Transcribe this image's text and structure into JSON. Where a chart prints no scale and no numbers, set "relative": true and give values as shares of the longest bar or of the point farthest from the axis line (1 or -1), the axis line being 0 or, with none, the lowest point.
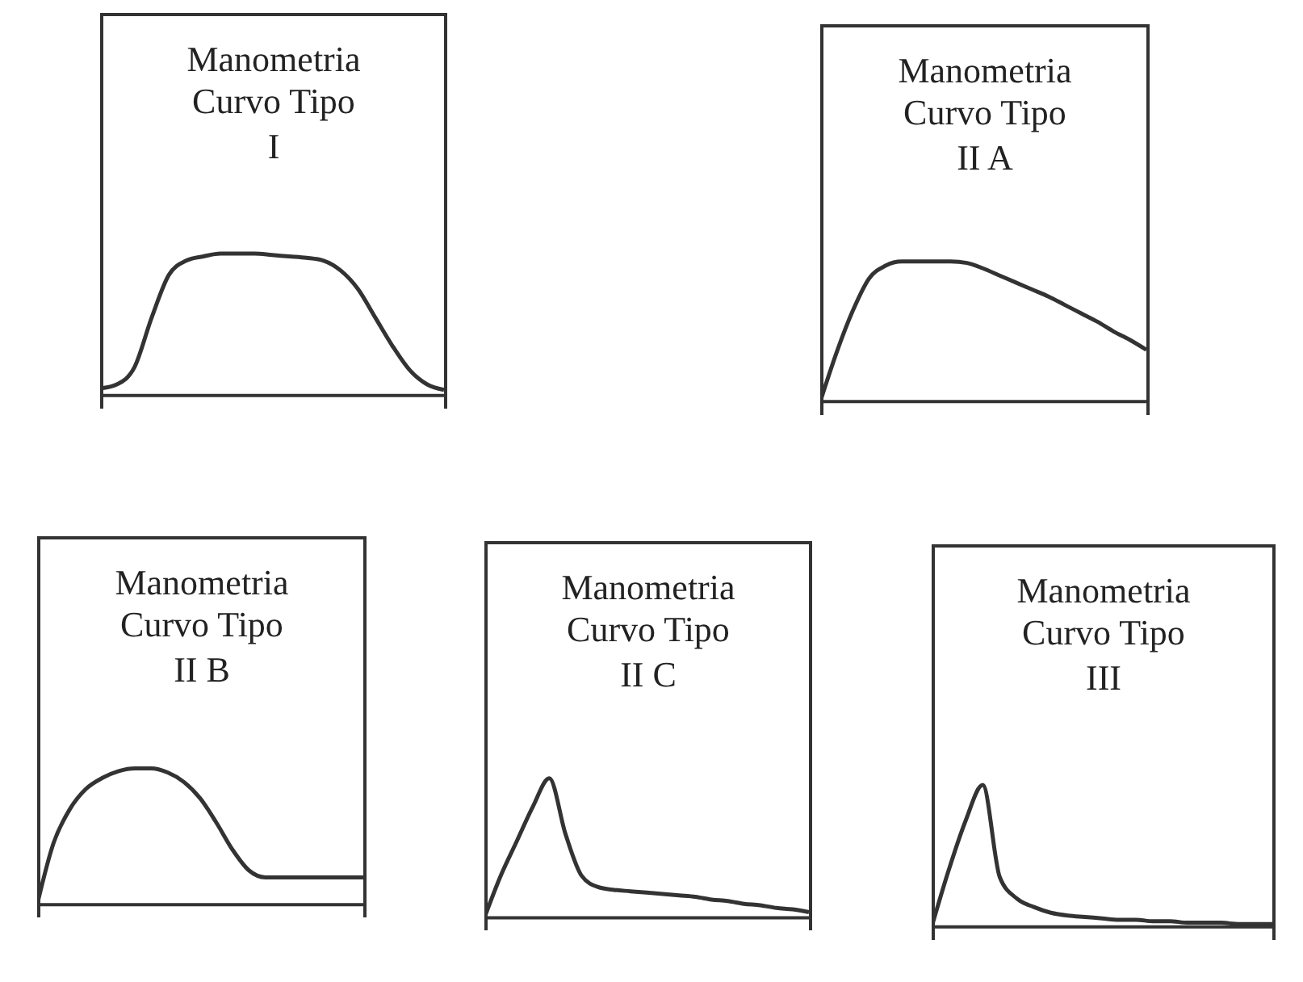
{
  "chart_data": [
    {
      "type": "line",
      "title": "Manometria Curvo Tipo",
      "subtitle": "I",
      "relative": true,
      "tick_labels": false,
      "color": "#333333",
      "categories": [
        null,
        null,
        null,
        null,
        null,
        null,
        null,
        null,
        null,
        null,
        null,
        null,
        null,
        null,
        null,
        null,
        null,
        null,
        null,
        null,
        null
      ],
      "values": [
        0.05,
        0.08,
        0.2,
        0.55,
        0.85,
        0.95,
        0.98,
        1,
        1,
        1,
        0.99,
        0.98,
        0.97,
        0.95,
        0.88,
        0.75,
        0.55,
        0.35,
        0.18,
        0.08,
        0.04
      ]
    },
    {
      "type": "line",
      "title": "Manometria Curvo Tipo",
      "subtitle": "II A",
      "relative": true,
      "tick_labels": false,
      "color": "#333333",
      "categories": [
        null,
        null,
        null,
        null,
        null,
        null,
        null,
        null,
        null,
        null,
        null,
        null,
        null,
        null,
        null,
        null,
        null,
        null,
        null,
        null,
        null
      ],
      "values": [
        0,
        0.35,
        0.65,
        0.88,
        0.97,
        1,
        1,
        1,
        1,
        0.99,
        0.95,
        0.9,
        0.85,
        0.8,
        0.75,
        0.69,
        0.63,
        0.57,
        0.5,
        0.44,
        0.37
      ]
    },
    {
      "type": "line",
      "title": "Manometria Curvo Tipo",
      "subtitle": "II B",
      "relative": true,
      "tick_labels": false,
      "color": "#333333",
      "categories": [
        null,
        null,
        null,
        null,
        null,
        null,
        null,
        null,
        null,
        null,
        null,
        null,
        null,
        null,
        null,
        null,
        null,
        null,
        null,
        null,
        null
      ],
      "values": [
        0,
        0.45,
        0.7,
        0.85,
        0.93,
        0.98,
        1,
        1,
        0.97,
        0.9,
        0.78,
        0.6,
        0.4,
        0.25,
        0.2,
        0.2,
        0.2,
        0.2,
        0.2,
        0.2,
        0.2
      ]
    },
    {
      "type": "line",
      "title": "Manometria Curvo Tipo",
      "subtitle": "II C",
      "relative": true,
      "tick_labels": false,
      "color": "#333333",
      "categories": [
        null,
        null,
        null,
        null,
        null,
        null,
        null,
        null,
        null,
        null,
        null,
        null,
        null,
        null,
        null,
        null,
        null,
        null,
        null,
        null,
        null
      ],
      "values": [
        0,
        0.3,
        0.55,
        0.8,
        1,
        0.6,
        0.3,
        0.22,
        0.2,
        0.19,
        0.18,
        0.17,
        0.16,
        0.15,
        0.13,
        0.12,
        0.1,
        0.09,
        0.07,
        0.06,
        0.04
      ]
    },
    {
      "type": "line",
      "title": "Manometria Curvo Tipo",
      "subtitle": "III",
      "relative": true,
      "tick_labels": false,
      "color": "#333333",
      "categories": [
        null,
        null,
        null,
        null,
        null,
        null,
        null,
        null,
        null,
        null,
        null,
        null,
        null,
        null,
        null,
        null,
        null,
        null,
        null,
        null,
        null
      ],
      "values": [
        0,
        0.4,
        0.75,
        1,
        0.35,
        0.2,
        0.14,
        0.1,
        0.08,
        0.07,
        0.06,
        0.05,
        0.05,
        0.04,
        0.04,
        0.03,
        0.03,
        0.03,
        0.02,
        0.02,
        0.02
      ]
    }
  ]
}
